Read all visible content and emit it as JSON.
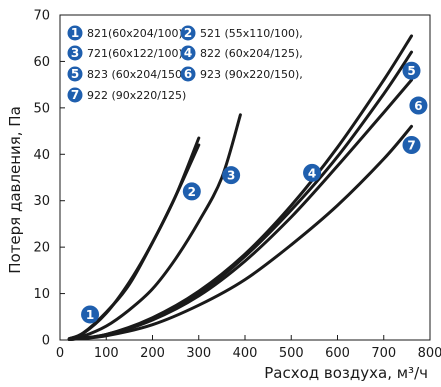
{
  "chart_data": {
    "type": "line",
    "title": "",
    "xlabel": "Расход воздуха, м³/ч",
    "ylabel": "Потеря давления, Па",
    "xlim": [
      0,
      800
    ],
    "ylim": [
      0,
      70
    ],
    "xticks": [
      0,
      100,
      200,
      300,
      400,
      500,
      600,
      700,
      800
    ],
    "yticks": [
      0,
      10,
      20,
      30,
      40,
      50,
      60,
      70
    ],
    "grid": false,
    "legend": [
      {
        "num": "1",
        "text": "821(60x204/100),"
      },
      {
        "num": "2",
        "text": "521 (55x110/100),"
      },
      {
        "num": "3",
        "text": "721(60x122/100),"
      },
      {
        "num": "4",
        "text": "822 (60x204/125),"
      },
      {
        "num": "5",
        "text": "823 (60x204/150),"
      },
      {
        "num": "6",
        "text": "923 (90x220/150),"
      },
      {
        "num": "7",
        "text": "922 (90x220/125)"
      }
    ],
    "series": [
      {
        "num": "1",
        "points": [
          [
            20,
            0.3
          ],
          [
            50,
            1.5
          ],
          [
            100,
            6
          ],
          [
            150,
            12
          ],
          [
            200,
            21
          ],
          [
            250,
            31
          ],
          [
            300,
            43.5
          ]
        ],
        "marker": [
          65,
          5.5
        ]
      },
      {
        "num": "2",
        "points": [
          [
            20,
            0.3
          ],
          [
            50,
            1.4
          ],
          [
            100,
            5.8
          ],
          [
            150,
            12.5
          ],
          [
            200,
            21
          ],
          [
            250,
            31
          ],
          [
            300,
            42
          ]
        ],
        "marker": [
          285,
          32
        ]
      },
      {
        "num": "3",
        "points": [
          [
            20,
            0.2
          ],
          [
            50,
            0.8
          ],
          [
            100,
            3
          ],
          [
            150,
            6.5
          ],
          [
            200,
            11
          ],
          [
            250,
            17.5
          ],
          [
            300,
            25.5
          ],
          [
            350,
            35
          ],
          [
            390,
            48.5
          ]
        ],
        "marker": [
          370,
          35.5
        ]
      },
      {
        "num": "4",
        "points": [
          [
            20,
            0.1
          ],
          [
            100,
            1.2
          ],
          [
            200,
            4.5
          ],
          [
            300,
            10
          ],
          [
            400,
            18
          ],
          [
            500,
            28
          ],
          [
            600,
            39.5
          ],
          [
            700,
            53
          ],
          [
            760,
            62
          ]
        ],
        "marker": [
          545,
          36
        ]
      },
      {
        "num": "5",
        "points": [
          [
            20,
            0.1
          ],
          [
            100,
            1.2
          ],
          [
            200,
            4.8
          ],
          [
            300,
            10.5
          ],
          [
            400,
            18.5
          ],
          [
            500,
            29
          ],
          [
            600,
            41.5
          ],
          [
            700,
            56
          ],
          [
            760,
            65.5
          ]
        ],
        "marker": [
          760,
          58
        ]
      },
      {
        "num": "6",
        "points": [
          [
            20,
            0.1
          ],
          [
            100,
            1.1
          ],
          [
            200,
            4.3
          ],
          [
            300,
            9.5
          ],
          [
            400,
            17
          ],
          [
            500,
            26.5
          ],
          [
            600,
            37.5
          ],
          [
            700,
            49
          ],
          [
            760,
            56
          ]
        ],
        "marker": [
          775,
          50.5
        ]
      },
      {
        "num": "7",
        "points": [
          [
            20,
            0.1
          ],
          [
            100,
            0.9
          ],
          [
            200,
            3.3
          ],
          [
            300,
            7.5
          ],
          [
            400,
            13
          ],
          [
            500,
            20.5
          ],
          [
            600,
            29
          ],
          [
            700,
            39
          ],
          [
            760,
            46
          ]
        ],
        "marker": [
          760,
          42
        ]
      }
    ]
  }
}
